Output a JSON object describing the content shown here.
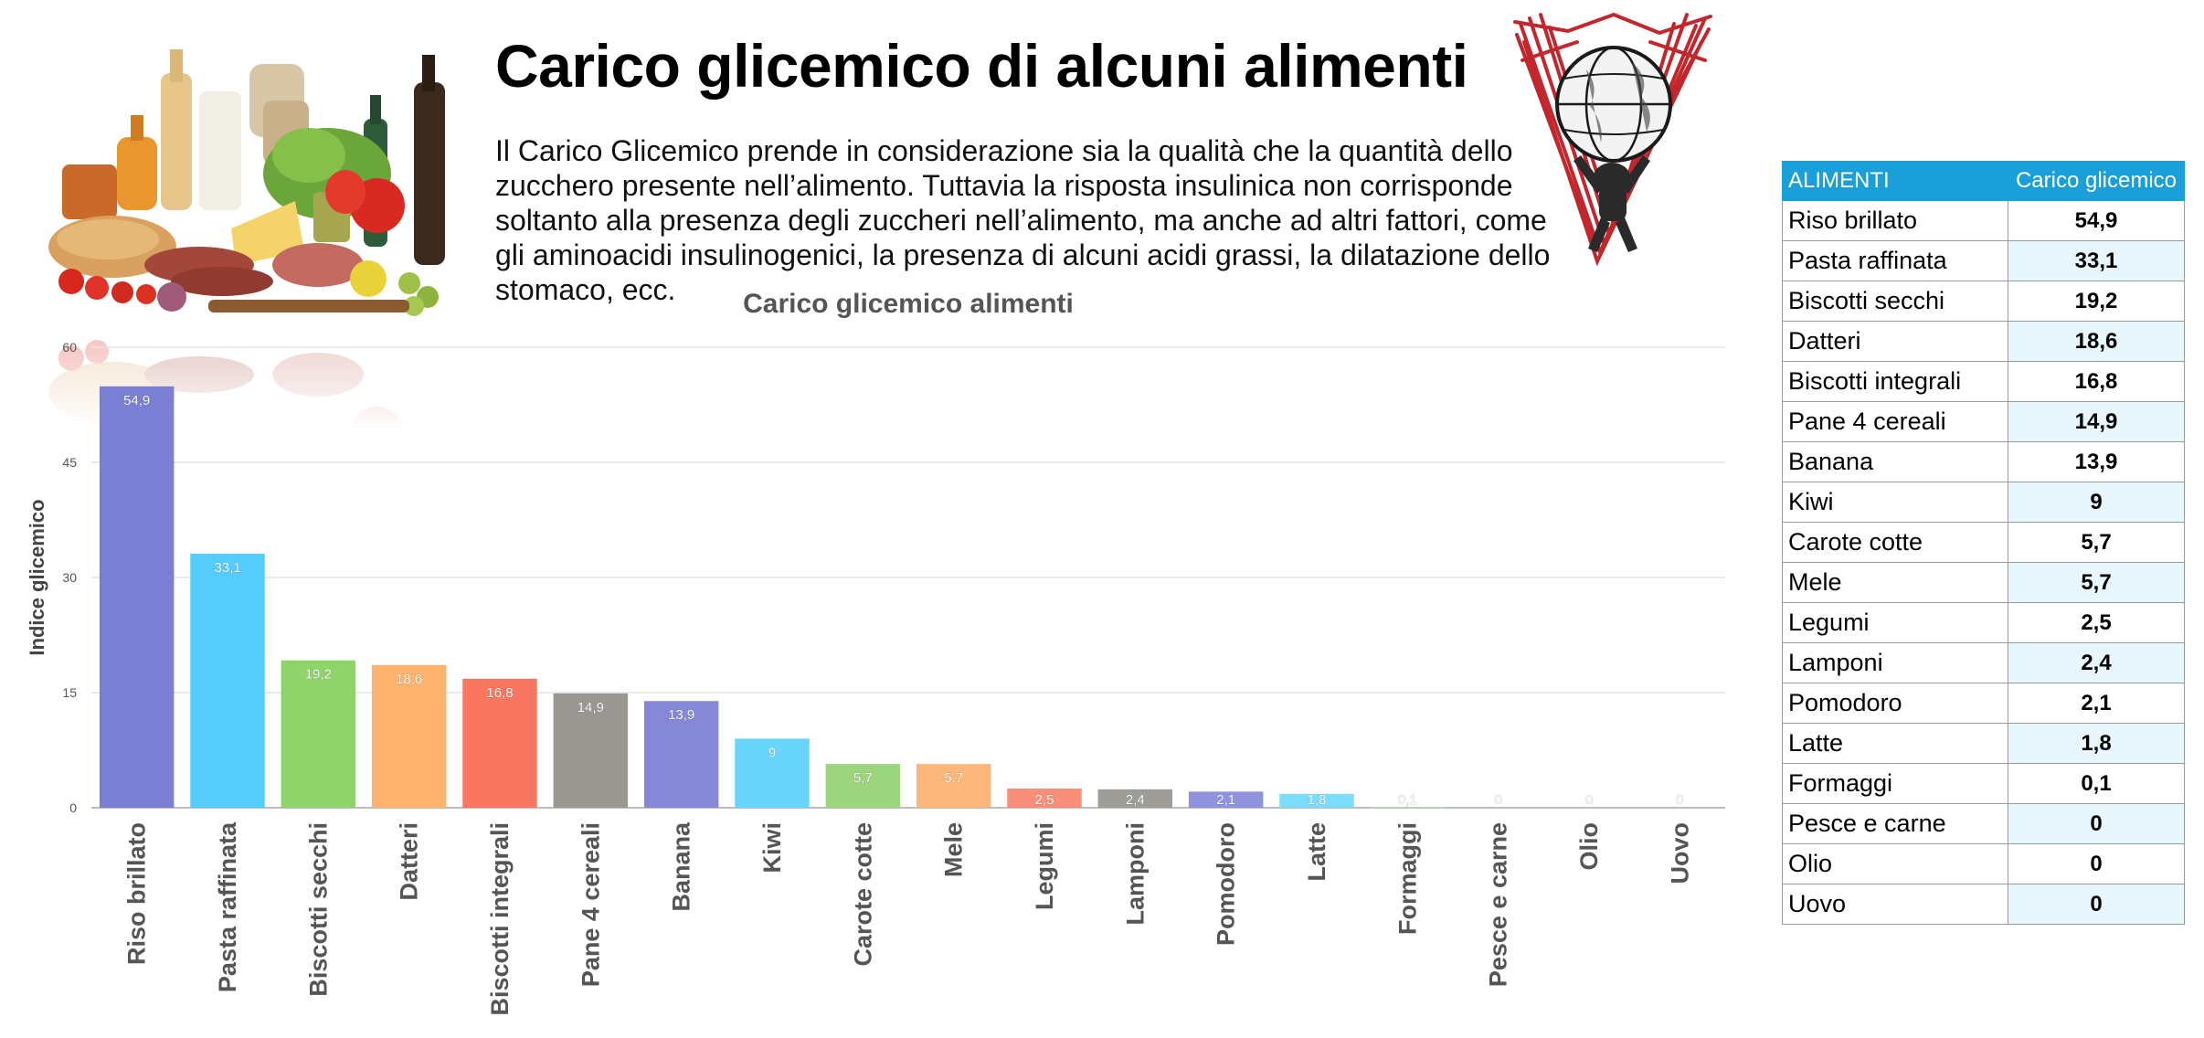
{
  "header": {
    "title": "Carico glicemico di alcuni alimenti",
    "intro": "Il Carico Glicemico prende in considerazione sia la qualità che la quantità dello zucchero presente nell’alimento. Tuttavia la risposta insulinica non corrisponde soltanto alla presenza degli zuccheri nell’alimento, ma anche ad altri fattori, come gli aminoacidi insulinogenici, la presenza di alcuni acidi grassi, la dilatazione dello stomaco, ecc."
  },
  "images": {
    "food_photo": "groceries-photo",
    "logo": "atlas-globe-logo"
  },
  "chart_data": {
    "type": "bar",
    "title": "Carico glicemico alimenti",
    "xlabel": "",
    "ylabel": "Indice glicemico",
    "ylim": [
      0,
      60
    ],
    "yticks": [
      0,
      15,
      30,
      45,
      60
    ],
    "grid": true,
    "categories": [
      "Riso brillato",
      "Pasta raffinata",
      "Biscotti secchi",
      "Datteri",
      "Biscotti integrali",
      "Pane 4 cereali",
      "Banana",
      "Kiwi",
      "Carote cotte",
      "Mele",
      "Legumi",
      "Lamponi",
      "Pomodoro",
      "Latte",
      "Formaggi",
      "Pesce e carne",
      "Olio",
      "Uovo"
    ],
    "values": [
      54.9,
      33.1,
      19.2,
      18.6,
      16.8,
      14.9,
      13.9,
      9,
      5.7,
      5.7,
      2.5,
      2.4,
      2.1,
      1.8,
      0.1,
      0,
      0,
      0
    ],
    "value_labels": [
      "54,9",
      "33,1",
      "19,2",
      "18,6",
      "16,8",
      "14,9",
      "13,9",
      "9",
      "5,7",
      "5,7",
      "2,5",
      "2,4",
      "2,1",
      "1,8",
      "0,1",
      "0",
      "0",
      "0"
    ],
    "colors": [
      "#7b7fd3",
      "#55cdfc",
      "#8fd46a",
      "#fdb36b",
      "#f97761",
      "#9a9792",
      "#8688d7",
      "#68d6fc",
      "#9dd57f",
      "#fdb77a",
      "#f98e7b",
      "#9f9d98",
      "#8f92dc",
      "#7bdcfc",
      "#b6e39f",
      "#fdc796",
      "#f9a494",
      "#b0aeaa"
    ]
  },
  "table": {
    "headers": [
      "ALIMENTI",
      "Carico glicemico"
    ],
    "rows": [
      {
        "name": "Riso brillato",
        "value": "54,9"
      },
      {
        "name": "Pasta raffinata",
        "value": "33,1"
      },
      {
        "name": "Biscotti secchi",
        "value": "19,2"
      },
      {
        "name": "Datteri",
        "value": "18,6"
      },
      {
        "name": "Biscotti integrali",
        "value": "16,8"
      },
      {
        "name": "Pane 4 cereali",
        "value": "14,9"
      },
      {
        "name": "Banana",
        "value": "13,9"
      },
      {
        "name": "Kiwi",
        "value": "9"
      },
      {
        "name": "Carote cotte",
        "value": "5,7"
      },
      {
        "name": "Mele",
        "value": "5,7"
      },
      {
        "name": "Legumi",
        "value": "2,5"
      },
      {
        "name": "Lamponi",
        "value": "2,4"
      },
      {
        "name": "Pomodoro",
        "value": "2,1"
      },
      {
        "name": "Latte",
        "value": "1,8"
      },
      {
        "name": "Formaggi",
        "value": "0,1"
      },
      {
        "name": "Pesce e carne",
        "value": "0"
      },
      {
        "name": "Olio",
        "value": "0"
      },
      {
        "name": "Uovo",
        "value": "0"
      }
    ]
  }
}
